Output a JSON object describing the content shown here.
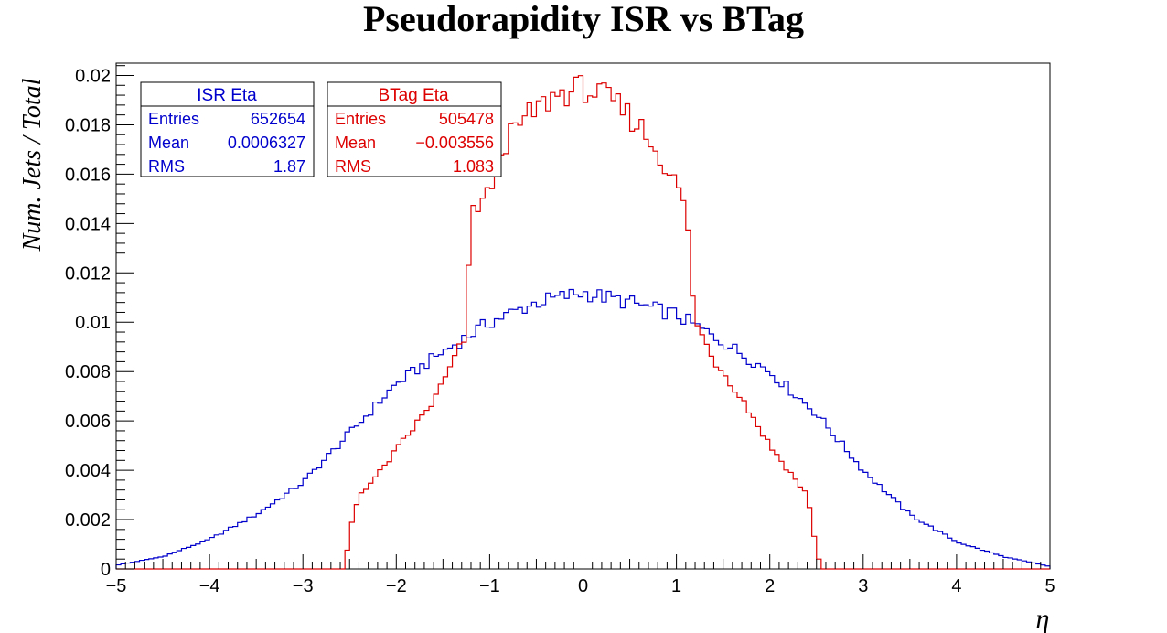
{
  "chart_data": {
    "type": "histogram",
    "title": "Pseudorapidity ISR vs BTag",
    "xlabel": "η",
    "ylabel": "Num. Jets / Total",
    "xlim": [
      -5,
      5
    ],
    "ylim": [
      0,
      0.0205
    ],
    "x_ticks": [
      -5,
      -4,
      -3,
      -2,
      -1,
      0,
      1,
      2,
      3,
      4,
      5
    ],
    "x_tick_labels": [
      "−5",
      "−4",
      "−3",
      "−2",
      "−1",
      "0",
      "1",
      "2",
      "3",
      "4",
      "5"
    ],
    "y_ticks": [
      0,
      0.002,
      0.004,
      0.006,
      0.008,
      0.01,
      0.012,
      0.014,
      0.016,
      0.018,
      0.02
    ],
    "y_tick_labels": [
      "0",
      "0.002",
      "0.004",
      "0.006",
      "0.008",
      "0.01",
      "0.012",
      "0.014",
      "0.016",
      "0.018",
      "0.02"
    ],
    "bins": {
      "count": 200,
      "min": -5,
      "max": 5
    },
    "grid": false,
    "series": [
      {
        "name": "ISR Eta",
        "color": "#0000cc",
        "anchors": [
          [
            -5.0,
            0.00015
          ],
          [
            -4.5,
            0.0005
          ],
          [
            -4.0,
            0.0012
          ],
          [
            -3.5,
            0.0022
          ],
          [
            -3.0,
            0.0035
          ],
          [
            -2.5,
            0.0055
          ],
          [
            -2.0,
            0.0075
          ],
          [
            -1.5,
            0.0088
          ],
          [
            -1.0,
            0.01
          ],
          [
            -0.5,
            0.0108
          ],
          [
            0.0,
            0.0112
          ],
          [
            0.5,
            0.0108
          ],
          [
            1.0,
            0.0103
          ],
          [
            1.5,
            0.0092
          ],
          [
            2.0,
            0.008
          ],
          [
            2.5,
            0.0063
          ],
          [
            3.0,
            0.004
          ],
          [
            3.5,
            0.0022
          ],
          [
            4.0,
            0.0011
          ],
          [
            4.5,
            0.0005
          ],
          [
            5.0,
            0.0001
          ]
        ],
        "stats": {
          "entries": "652654",
          "mean": "0.0006327",
          "rms": "1.87"
        }
      },
      {
        "name": "BTag Eta",
        "color": "#dd0000",
        "anchors": [
          [
            -2.55,
            0.0
          ],
          [
            -2.5,
            0.0015
          ],
          [
            -2.4,
            0.003
          ],
          [
            -2.2,
            0.0038
          ],
          [
            -2.0,
            0.0048
          ],
          [
            -1.8,
            0.0058
          ],
          [
            -1.6,
            0.0068
          ],
          [
            -1.4,
            0.0083
          ],
          [
            -1.25,
            0.0095
          ],
          [
            -1.2,
            0.0145
          ],
          [
            -1.0,
            0.0152
          ],
          [
            -0.9,
            0.017
          ],
          [
            -0.6,
            0.0183
          ],
          [
            -0.3,
            0.0192
          ],
          [
            0.0,
            0.0195
          ],
          [
            0.3,
            0.019
          ],
          [
            0.6,
            0.018
          ],
          [
            0.9,
            0.0163
          ],
          [
            1.1,
            0.0147
          ],
          [
            1.2,
            0.01
          ],
          [
            1.4,
            0.0085
          ],
          [
            1.6,
            0.0075
          ],
          [
            1.8,
            0.0063
          ],
          [
            2.0,
            0.005
          ],
          [
            2.2,
            0.004
          ],
          [
            2.4,
            0.003
          ],
          [
            2.5,
            0.0008
          ],
          [
            2.55,
            0.0
          ]
        ],
        "stats": {
          "entries": "505478",
          "mean": "−0.003556",
          "rms": "1.083"
        }
      }
    ],
    "stat_labels": {
      "entries": "Entries",
      "mean": "Mean",
      "rms": "RMS"
    }
  }
}
